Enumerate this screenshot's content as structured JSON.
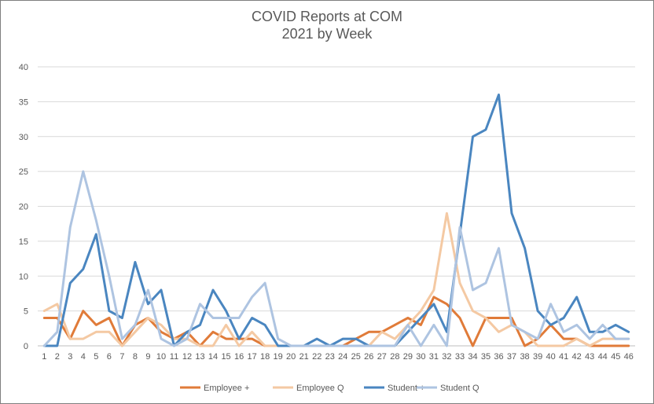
{
  "chart_data": {
    "type": "line",
    "title": "COVID Reports at COM",
    "subtitle": "2021 by Week",
    "xlabel": "",
    "ylabel": "",
    "ylim": [
      0,
      40
    ],
    "yticks": [
      0,
      5,
      10,
      15,
      20,
      25,
      30,
      35,
      40
    ],
    "grid": true,
    "legend_position": "bottom",
    "categories": [
      "1",
      "2",
      "3",
      "4",
      "5",
      "6",
      "7",
      "8",
      "9",
      "10",
      "11",
      "12",
      "13",
      "14",
      "15",
      "16",
      "17",
      "18",
      "19",
      "20",
      "21",
      "22",
      "23",
      "24",
      "25",
      "26",
      "27",
      "28",
      "29",
      "30",
      "31",
      "32",
      "33",
      "34",
      "35",
      "36",
      "37",
      "38",
      "39",
      "40",
      "41",
      "42",
      "43",
      "44",
      "45",
      "46"
    ],
    "series": [
      {
        "name": "Employee +",
        "color": "#e07b39",
        "values": [
          4,
          4,
          1,
          5,
          3,
          4,
          0,
          3,
          4,
          2,
          1,
          2,
          0,
          2,
          1,
          1,
          1,
          0,
          0,
          0,
          0,
          0,
          0,
          0,
          1,
          2,
          2,
          3,
          4,
          3,
          7,
          6,
          4,
          0,
          4,
          4,
          4,
          0,
          1,
          3,
          1,
          1,
          0,
          0,
          0,
          0
        ]
      },
      {
        "name": "Employee Q",
        "color": "#f4c9a3",
        "values": [
          5,
          6,
          1,
          1,
          2,
          2,
          0,
          2,
          4,
          3,
          1,
          1,
          0,
          0,
          3,
          0,
          2,
          0,
          0,
          0,
          0,
          0,
          0,
          0,
          0,
          0,
          2,
          1,
          3,
          5,
          8,
          19,
          9,
          5,
          4,
          2,
          3,
          2,
          0,
          0,
          0,
          1,
          0,
          1,
          1,
          1
        ]
      },
      {
        "name": "Student +",
        "color": "#4a86c0",
        "values": [
          0,
          0,
          9,
          11,
          16,
          5,
          4,
          12,
          6,
          8,
          0,
          2,
          3,
          8,
          5,
          1,
          4,
          3,
          0,
          0,
          0,
          1,
          0,
          1,
          1,
          0,
          0,
          0,
          2,
          4,
          6,
          2,
          16,
          30,
          31,
          36,
          19,
          14,
          5,
          3,
          4,
          7,
          2,
          2,
          3,
          2
        ]
      },
      {
        "name": "Student Q",
        "color": "#aec4e1",
        "values": [
          0,
          2,
          17,
          25,
          18,
          10,
          1,
          3,
          8,
          1,
          0,
          1,
          6,
          4,
          4,
          4,
          7,
          9,
          1,
          0,
          0,
          0,
          0,
          0,
          0,
          0,
          0,
          0,
          3,
          0,
          3,
          0,
          17,
          8,
          9,
          14,
          3,
          2,
          1,
          6,
          2,
          3,
          1,
          3,
          1,
          1
        ]
      }
    ]
  }
}
